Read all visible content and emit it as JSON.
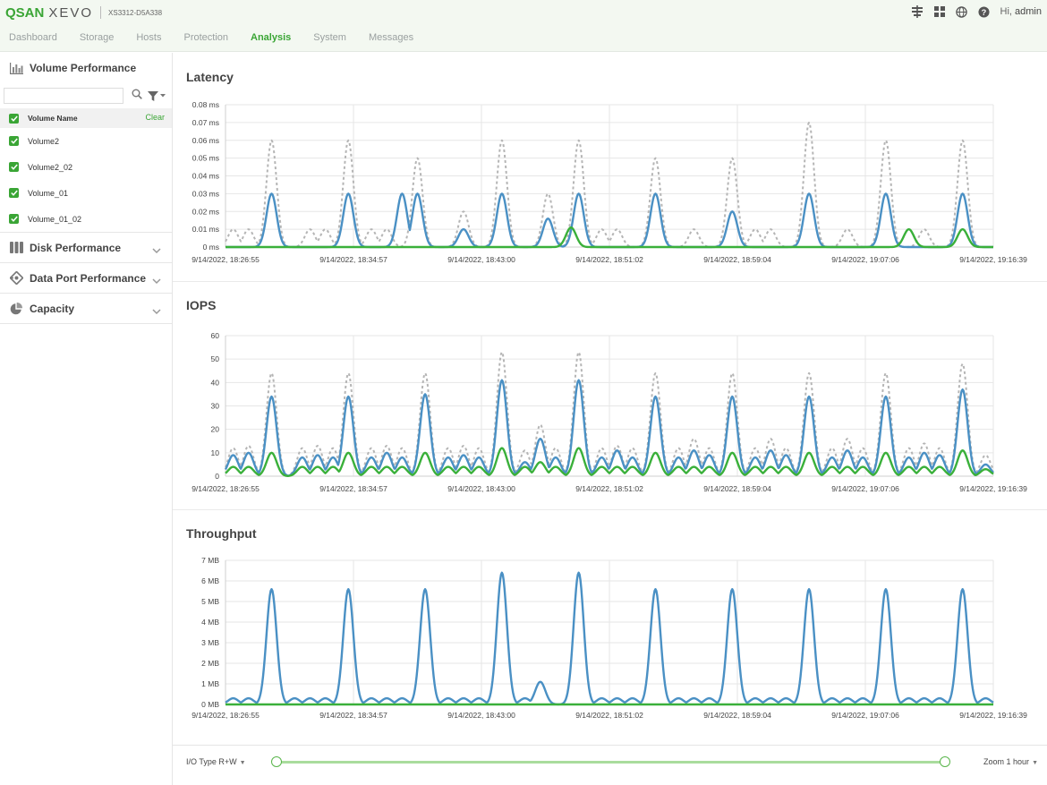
{
  "header": {
    "brand": "QSAN",
    "product": "XEVO",
    "model": "XS3312-D5A338",
    "greeting_prefix": "Hi,",
    "user": "admin",
    "icons": [
      "network-icon",
      "grid-apps-icon",
      "globe-language-icon",
      "help-icon"
    ]
  },
  "nav": {
    "items": [
      "Dashboard",
      "Storage",
      "Hosts",
      "Protection",
      "Analysis",
      "System",
      "Messages"
    ],
    "active": "Analysis"
  },
  "sidebar": {
    "volume_performance": {
      "label": "Volume Performance",
      "icon": "bar-chart-icon"
    },
    "search_placeholder": "",
    "volume_header": "Volume Name",
    "clear_label": "Clear",
    "volumes": [
      "Volume2",
      "Volume2_02",
      "Volume_01",
      "Volume_01_02"
    ],
    "sections": [
      {
        "label": "Disk Performance",
        "icon": "disk-icon"
      },
      {
        "label": "Data Port Performance",
        "icon": "data-port-icon"
      },
      {
        "label": "Capacity",
        "icon": "pie-chart-icon"
      }
    ]
  },
  "colors": {
    "accent": "#3aa535",
    "series_total": "#b5b5b5",
    "series_read": "#4a90c4",
    "series_write": "#3ab03a"
  },
  "charts": {
    "x_ticks": [
      "9/14/2022, 18:26:55",
      "9/14/2022, 18:34:57",
      "9/14/2022, 18:43:00",
      "9/14/2022, 18:51:02",
      "9/14/2022, 18:59:04",
      "9/14/2022, 19:07:06",
      "9/14/2022, 19:16:39"
    ]
  },
  "chart_data": [
    {
      "type": "line",
      "title": "Latency",
      "y_ticks": [
        "0 ms",
        "0.01 ms",
        "0.02 ms",
        "0.03 ms",
        "0.04 ms",
        "0.05 ms",
        "0.06 ms",
        "0.07 ms",
        "0.08 ms"
      ],
      "ylim": [
        0,
        0.08
      ],
      "x": [
        "9/14/2022, 18:26:55",
        "9/14/2022, 18:34:57",
        "9/14/2022, 18:43:00",
        "9/14/2022, 18:51:02",
        "9/14/2022, 18:59:04",
        "9/14/2022, 19:07:06",
        "9/14/2022, 19:16:39"
      ],
      "xlim": [
        0,
        50
      ],
      "series": [
        {
          "color": "#b5b5b5",
          "dashed": true,
          "peaks": [
            [
              0.5,
              0.01
            ],
            [
              1.5,
              0.01
            ],
            [
              3,
              0.06
            ],
            [
              5.5,
              0.01
            ],
            [
              6.5,
              0.01
            ],
            [
              8,
              0.06
            ],
            [
              9.5,
              0.01
            ],
            [
              10.5,
              0.01
            ],
            [
              12.5,
              0.05
            ],
            [
              15.5,
              0.02
            ],
            [
              18,
              0.06
            ],
            [
              21,
              0.03
            ],
            [
              23,
              0.06
            ],
            [
              24.5,
              0.01
            ],
            [
              25.5,
              0.01
            ],
            [
              28,
              0.05
            ],
            [
              30.5,
              0.01
            ],
            [
              33,
              0.05
            ],
            [
              34.5,
              0.01
            ],
            [
              35.5,
              0.01
            ],
            [
              38,
              0.07
            ],
            [
              40.5,
              0.01
            ],
            [
              43,
              0.06
            ],
            [
              45.5,
              0.01
            ],
            [
              48,
              0.06
            ]
          ]
        },
        {
          "color": "#4a90c4",
          "dashed": false,
          "peaks": [
            [
              3,
              0.03
            ],
            [
              8,
              0.03
            ],
            [
              11.5,
              0.03
            ],
            [
              12.5,
              0.03
            ],
            [
              15.5,
              0.01
            ],
            [
              18,
              0.03
            ],
            [
              21,
              0.016
            ],
            [
              23,
              0.03
            ],
            [
              28,
              0.03
            ],
            [
              33,
              0.02
            ],
            [
              38,
              0.03
            ],
            [
              43,
              0.03
            ],
            [
              48,
              0.03
            ]
          ]
        },
        {
          "color": "#3ab03a",
          "dashed": false,
          "peaks": [
            [
              22.5,
              0.011
            ],
            [
              44.5,
              0.01
            ],
            [
              48,
              0.01
            ]
          ]
        }
      ]
    },
    {
      "type": "line",
      "title": "IOPS",
      "y_ticks": [
        "0",
        "10",
        "20",
        "30",
        "40",
        "50",
        "60"
      ],
      "ylim": [
        0,
        60
      ],
      "x": [
        "9/14/2022, 18:26:55",
        "9/14/2022, 18:34:57",
        "9/14/2022, 18:43:00",
        "9/14/2022, 18:51:02",
        "9/14/2022, 18:59:04",
        "9/14/2022, 19:07:06",
        "9/14/2022, 19:16:39"
      ],
      "xlim": [
        0,
        50
      ],
      "series": [
        {
          "color": "#b5b5b5",
          "dashed": true,
          "peaks": [
            [
              0.5,
              12
            ],
            [
              1.5,
              13
            ],
            [
              3,
              44
            ],
            [
              5,
              12
            ],
            [
              6,
              13
            ],
            [
              7,
              12
            ],
            [
              8,
              44
            ],
            [
              9.5,
              12
            ],
            [
              10.5,
              13
            ],
            [
              11.5,
              12
            ],
            [
              13,
              44
            ],
            [
              14.5,
              12
            ],
            [
              15.5,
              13
            ],
            [
              16.5,
              12
            ],
            [
              18,
              53
            ],
            [
              19.5,
              11
            ],
            [
              20.5,
              22
            ],
            [
              21.5,
              12
            ],
            [
              23,
              53
            ],
            [
              24.5,
              12
            ],
            [
              25.5,
              13
            ],
            [
              26.5,
              12
            ],
            [
              28,
              44
            ],
            [
              29.5,
              12
            ],
            [
              30.5,
              16
            ],
            [
              31.5,
              12
            ],
            [
              33,
              44
            ],
            [
              34.5,
              12
            ],
            [
              35.5,
              16
            ],
            [
              36.5,
              12
            ],
            [
              38,
              44
            ],
            [
              39.5,
              12
            ],
            [
              40.5,
              16
            ],
            [
              41.5,
              12
            ],
            [
              43,
              44
            ],
            [
              44.5,
              12
            ],
            [
              45.5,
              14
            ],
            [
              46.5,
              12
            ],
            [
              48,
              48
            ],
            [
              49.5,
              9
            ]
          ]
        },
        {
          "color": "#4a90c4",
          "dashed": false,
          "peaks": [
            [
              0.5,
              9
            ],
            [
              1.5,
              10
            ],
            [
              3,
              34
            ],
            [
              5,
              8
            ],
            [
              6,
              9
            ],
            [
              7,
              8
            ],
            [
              8,
              34
            ],
            [
              9.5,
              8
            ],
            [
              10.5,
              10
            ],
            [
              11.5,
              8
            ],
            [
              13,
              35
            ],
            [
              14.5,
              8
            ],
            [
              15.5,
              9
            ],
            [
              16.5,
              8
            ],
            [
              18,
              41
            ],
            [
              19.5,
              6
            ],
            [
              20.5,
              16
            ],
            [
              21.5,
              8
            ],
            [
              23,
              41
            ],
            [
              24.5,
              8
            ],
            [
              25.5,
              11
            ],
            [
              26.5,
              8
            ],
            [
              28,
              34
            ],
            [
              29.5,
              8
            ],
            [
              30.5,
              11
            ],
            [
              31.5,
              9
            ],
            [
              33,
              34
            ],
            [
              34.5,
              8
            ],
            [
              35.5,
              11
            ],
            [
              36.5,
              9
            ],
            [
              38,
              34
            ],
            [
              39.5,
              8
            ],
            [
              40.5,
              11
            ],
            [
              41.5,
              8
            ],
            [
              43,
              34
            ],
            [
              44.5,
              8
            ],
            [
              45.5,
              10
            ],
            [
              46.5,
              9
            ],
            [
              48,
              37
            ],
            [
              49.5,
              5
            ]
          ]
        },
        {
          "color": "#3ab03a",
          "dashed": false,
          "peaks": [
            [
              0.5,
              4
            ],
            [
              1.5,
              4
            ],
            [
              3,
              10
            ],
            [
              5,
              4
            ],
            [
              6,
              4
            ],
            [
              7,
              4
            ],
            [
              8,
              10
            ],
            [
              9.5,
              4
            ],
            [
              10.5,
              4
            ],
            [
              11.5,
              4
            ],
            [
              13,
              10
            ],
            [
              14.5,
              4
            ],
            [
              15.5,
              4
            ],
            [
              16.5,
              4
            ],
            [
              18,
              12
            ],
            [
              19.5,
              4
            ],
            [
              20.5,
              6
            ],
            [
              21.5,
              4
            ],
            [
              23,
              12
            ],
            [
              24.5,
              4
            ],
            [
              25.5,
              4
            ],
            [
              26.5,
              4
            ],
            [
              28,
              10
            ],
            [
              29.5,
              4
            ],
            [
              30.5,
              4
            ],
            [
              31.5,
              4
            ],
            [
              33,
              10
            ],
            [
              34.5,
              4
            ],
            [
              35.5,
              4
            ],
            [
              36.5,
              4
            ],
            [
              38,
              10
            ],
            [
              39.5,
              4
            ],
            [
              40.5,
              4
            ],
            [
              41.5,
              4
            ],
            [
              43,
              10
            ],
            [
              44.5,
              4
            ],
            [
              45.5,
              4
            ],
            [
              46.5,
              4
            ],
            [
              48,
              11
            ],
            [
              49.5,
              3
            ]
          ]
        }
      ]
    },
    {
      "type": "line",
      "title": "Throughput",
      "y_ticks": [
        "0 MB",
        "1 MB",
        "2 MB",
        "3 MB",
        "4 MB",
        "5 MB",
        "6 MB",
        "7 MB"
      ],
      "ylim": [
        0,
        7
      ],
      "x": [
        "9/14/2022, 18:26:55",
        "9/14/2022, 18:34:57",
        "9/14/2022, 18:43:00",
        "9/14/2022, 18:51:02",
        "9/14/2022, 18:59:04",
        "9/14/2022, 19:07:06",
        "9/14/2022, 19:16:39"
      ],
      "xlim": [
        0,
        50
      ],
      "series": [
        {
          "color": "#4a90c4",
          "dashed": false,
          "peaks": [
            [
              0.5,
              0.3
            ],
            [
              1.5,
              0.3
            ],
            [
              3,
              5.6
            ],
            [
              4.5,
              0.3
            ],
            [
              5.5,
              0.3
            ],
            [
              6.5,
              0.3
            ],
            [
              8,
              5.6
            ],
            [
              9.5,
              0.3
            ],
            [
              10.5,
              0.3
            ],
            [
              11.5,
              0.3
            ],
            [
              13,
              5.6
            ],
            [
              14.5,
              0.3
            ],
            [
              15.5,
              0.3
            ],
            [
              16.5,
              0.3
            ],
            [
              18,
              6.4
            ],
            [
              19.5,
              0.3
            ],
            [
              20.5,
              1.1
            ],
            [
              23,
              6.4
            ],
            [
              24.5,
              0.3
            ],
            [
              25.5,
              0.3
            ],
            [
              26.5,
              0.3
            ],
            [
              28,
              5.6
            ],
            [
              29.5,
              0.3
            ],
            [
              30.5,
              0.3
            ],
            [
              31.5,
              0.3
            ],
            [
              33,
              5.6
            ],
            [
              34.5,
              0.3
            ],
            [
              35.5,
              0.3
            ],
            [
              36.5,
              0.3
            ],
            [
              38,
              5.6
            ],
            [
              39.5,
              0.3
            ],
            [
              40.5,
              0.3
            ],
            [
              41.5,
              0.3
            ],
            [
              43,
              5.6
            ],
            [
              44.5,
              0.3
            ],
            [
              45.5,
              0.3
            ],
            [
              46.5,
              0.3
            ],
            [
              48,
              5.6
            ],
            [
              49.5,
              0.3
            ]
          ]
        },
        {
          "color": "#3ab03a",
          "dashed": false,
          "peaks": []
        }
      ]
    }
  ],
  "footer": {
    "io_type": "I/O Type R+W",
    "zoom": "Zoom 1 hour"
  }
}
